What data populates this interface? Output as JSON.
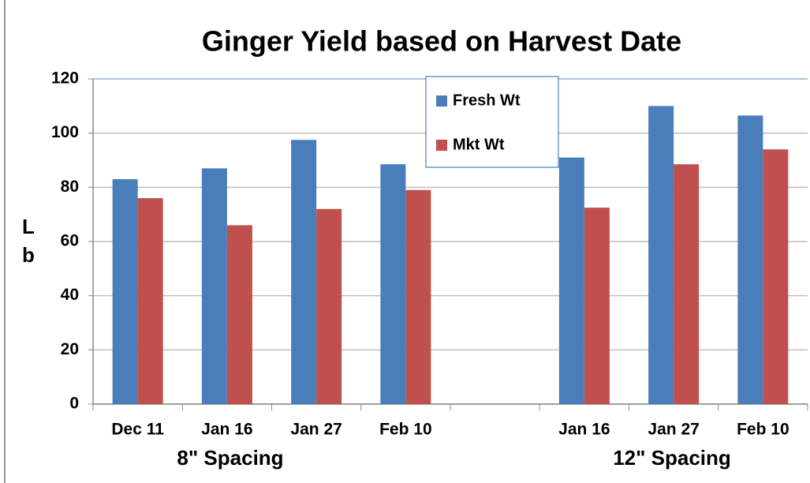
{
  "chart_data": {
    "type": "bar",
    "title": "Ginger Yield based on Harvest Date",
    "y_label": "Lb",
    "categories": [
      "Dec 11",
      "Jan 16",
      "Jan 27",
      "Feb 10",
      null,
      "Jan 16",
      "Jan 27",
      "Feb 10"
    ],
    "groups": [
      "8\" Spacing",
      "12\" Spacing"
    ],
    "series": [
      {
        "name": "Fresh Wt",
        "color": "#4a7ebb",
        "values": [
          83,
          87,
          97.5,
          88.5,
          null,
          91,
          110,
          106.5
        ]
      },
      {
        "name": "Mkt Wt",
        "color": "#c0504d",
        "values": [
          76,
          66,
          72,
          79,
          null,
          72.5,
          88.5,
          94
        ]
      }
    ],
    "ylim": [
      0,
      120
    ],
    "yticks": [
      0,
      20,
      40,
      60,
      80,
      100,
      120
    ],
    "grid": true,
    "legend": "top"
  }
}
